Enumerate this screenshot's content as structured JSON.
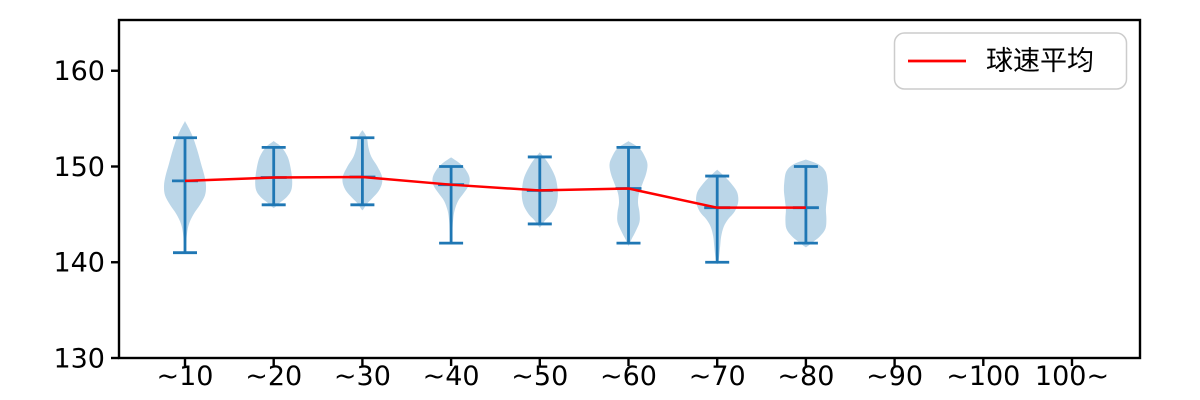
{
  "chart_data": {
    "type": "violin",
    "title": "",
    "xlabel": "",
    "ylabel": "",
    "grid": false,
    "categories": [
      "~10",
      "~20",
      "~30",
      "~40",
      "~50",
      "~60",
      "~70",
      "~80",
      "~90",
      "~100",
      "100~"
    ],
    "yticks": [
      130,
      140,
      150,
      160
    ],
    "ylim": [
      130,
      165.3
    ],
    "legend": {
      "label": "球速平均",
      "position": "upper right"
    },
    "series": [
      {
        "name": "球速平均",
        "type": "line",
        "color": "#ff0000",
        "x_categories": [
          "~10",
          "~20",
          "~30",
          "~40",
          "~50",
          "~60",
          "~70",
          "~80"
        ],
        "values": [
          148.5,
          148.85,
          148.9,
          148.1,
          147.5,
          147.7,
          145.7,
          145.7
        ]
      }
    ],
    "violins": [
      {
        "category": "~10",
        "min": 141,
        "max": 153,
        "mean": 148.5,
        "outline": [
          [
            154.6,
            0.7
          ],
          [
            153.3,
            7
          ],
          [
            151.8,
            12
          ],
          [
            150.3,
            16
          ],
          [
            149,
            19.5
          ],
          [
            148,
            21
          ],
          [
            147,
            20
          ],
          [
            146,
            15
          ],
          [
            145,
            8.5
          ],
          [
            144,
            4
          ],
          [
            143,
            2
          ],
          [
            141.8,
            1
          ],
          [
            141,
            0.7
          ]
        ]
      },
      {
        "category": "~20",
        "min": 146,
        "max": 152,
        "mean": 148.85,
        "outline": [
          [
            152.6,
            0.7
          ],
          [
            152,
            8
          ],
          [
            151,
            14
          ],
          [
            149.8,
            17
          ],
          [
            148.5,
            18.5
          ],
          [
            147.5,
            17.5
          ],
          [
            146.8,
            13
          ],
          [
            146.2,
            6
          ],
          [
            145.7,
            0.7
          ]
        ]
      },
      {
        "category": "~30",
        "min": 146,
        "max": 153,
        "mean": 148.9,
        "outline": [
          [
            153.7,
            0.7
          ],
          [
            153,
            4.5
          ],
          [
            152,
            6
          ],
          [
            151,
            9
          ],
          [
            150,
            15
          ],
          [
            149,
            19.5
          ],
          [
            148.2,
            19.5
          ],
          [
            147.4,
            16
          ],
          [
            146.7,
            10
          ],
          [
            146.1,
            4.5
          ],
          [
            145.5,
            0.7
          ]
        ]
      },
      {
        "category": "~40",
        "min": 142,
        "max": 150,
        "mean": 148.1,
        "outline": [
          [
            150.9,
            0.7
          ],
          [
            150.3,
            9
          ],
          [
            149.6,
            15
          ],
          [
            148.8,
            18.5
          ],
          [
            148,
            17.5
          ],
          [
            147.2,
            12.5
          ],
          [
            146.4,
            7
          ],
          [
            145.4,
            3.5
          ],
          [
            144.4,
            2
          ],
          [
            143.2,
            1.2
          ],
          [
            142,
            0.6
          ]
        ]
      },
      {
        "category": "~50",
        "min": 144,
        "max": 151,
        "mean": 147.5,
        "outline": [
          [
            151.4,
            0.7
          ],
          [
            150.7,
            6
          ],
          [
            149.9,
            11
          ],
          [
            148.9,
            15.5
          ],
          [
            147.9,
            17.5
          ],
          [
            146.9,
            18
          ],
          [
            145.9,
            16
          ],
          [
            145,
            11
          ],
          [
            144.4,
            5.5
          ],
          [
            143.7,
            0.7
          ]
        ]
      },
      {
        "category": "~60",
        "min": 142,
        "max": 152,
        "mean": 147.7,
        "outline": [
          [
            152.6,
            0.7
          ],
          [
            151.9,
            11
          ],
          [
            151,
            16.5
          ],
          [
            150.2,
            19
          ],
          [
            149.2,
            17.5
          ],
          [
            148.2,
            14
          ],
          [
            147.2,
            10.5
          ],
          [
            146.2,
            9.5
          ],
          [
            145.2,
            11
          ],
          [
            144.2,
            11
          ],
          [
            143.2,
            7
          ],
          [
            142.4,
            3
          ],
          [
            141.8,
            0.6
          ]
        ]
      },
      {
        "category": "~70",
        "min": 140,
        "max": 149,
        "mean": 145.7,
        "outline": [
          [
            149.6,
            0.7
          ],
          [
            148.9,
            8
          ],
          [
            148.1,
            15
          ],
          [
            147.3,
            20
          ],
          [
            146.3,
            21
          ],
          [
            145.3,
            17.5
          ],
          [
            144.5,
            11
          ],
          [
            143.7,
            6.5
          ],
          [
            142.7,
            4
          ],
          [
            141.7,
            3
          ],
          [
            140.7,
            2
          ],
          [
            139.9,
            0.7
          ]
        ]
      },
      {
        "category": "~80",
        "min": 142,
        "max": 150,
        "mean": 145.7,
        "outline": [
          [
            150.7,
            0.7
          ],
          [
            150.2,
            13
          ],
          [
            149.5,
            19.5
          ],
          [
            148.5,
            21.5
          ],
          [
            147.5,
            22
          ],
          [
            146.5,
            21
          ],
          [
            145.5,
            20
          ],
          [
            144.5,
            20.5
          ],
          [
            143.5,
            19.5
          ],
          [
            142.7,
            14
          ],
          [
            142.1,
            7
          ],
          [
            141.6,
            0.7
          ]
        ]
      }
    ],
    "colors": {
      "violin_fill": "rgba(31,119,180,0.3)",
      "violin_line": "#1f77b4",
      "mean_line": "#ff0000",
      "axis": "#000000",
      "legend_border": "#cccccc"
    }
  }
}
